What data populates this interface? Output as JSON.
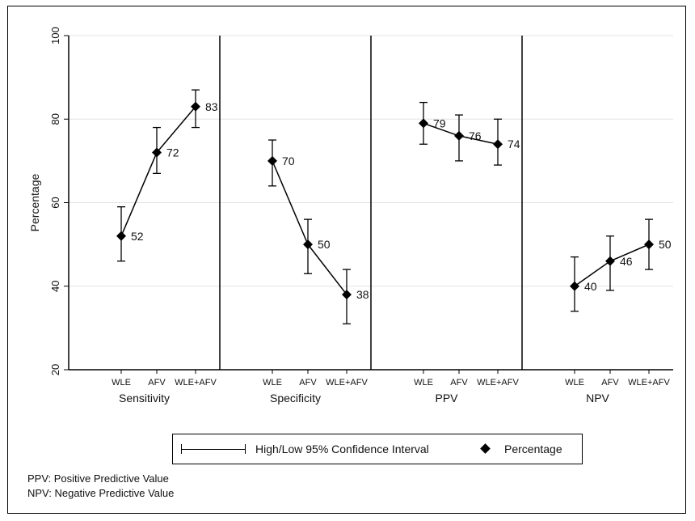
{
  "chart_data": {
    "type": "scatter",
    "ylabel": "Percentage",
    "ylim": [
      20,
      100
    ],
    "yticks": [
      20,
      40,
      60,
      80,
      100
    ],
    "grid": true,
    "panels": [
      {
        "label": "Sensitivity",
        "categories": [
          "WLE",
          "AFV",
          "WLE+AFV"
        ],
        "values": [
          52,
          72,
          83
        ],
        "ci_low": [
          46,
          67,
          78
        ],
        "ci_high": [
          59,
          78,
          87
        ]
      },
      {
        "label": "Specificity",
        "categories": [
          "WLE",
          "AFV",
          "WLE+AFV"
        ],
        "values": [
          70,
          50,
          38
        ],
        "ci_low": [
          64,
          43,
          31
        ],
        "ci_high": [
          75,
          56,
          44
        ]
      },
      {
        "label": "PPV",
        "categories": [
          "WLE",
          "AFV",
          "WLE+AFV"
        ],
        "values": [
          79,
          76,
          74
        ],
        "ci_low": [
          74,
          70,
          69
        ],
        "ci_high": [
          84,
          81,
          80
        ]
      },
      {
        "label": "NPV",
        "categories": [
          "WLE",
          "AFV",
          "WLE+AFV"
        ],
        "values": [
          40,
          46,
          50
        ],
        "ci_low": [
          34,
          39,
          44
        ],
        "ci_high": [
          47,
          52,
          56
        ]
      }
    ],
    "legend": {
      "position": "bottom",
      "items": [
        "High/Low 95% Confidence Interval",
        "Percentage"
      ]
    }
  },
  "footnotes": [
    "PPV: Positive Predictive Value",
    "NPV: Negative Predictive Value"
  ]
}
